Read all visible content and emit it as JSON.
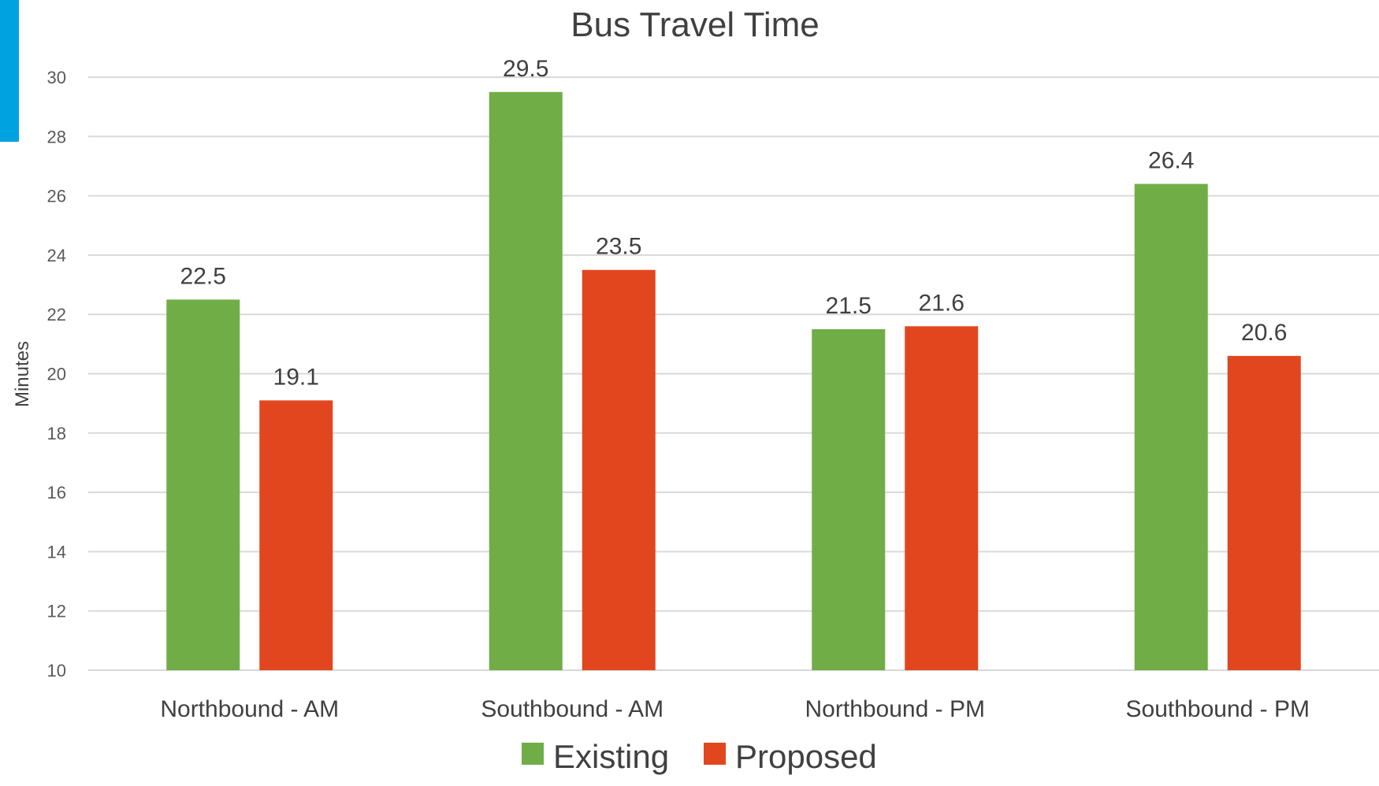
{
  "chart_data": {
    "type": "bar",
    "title": "Bus Travel Time",
    "xlabel": "",
    "ylabel": "Minutes",
    "ylim": [
      10,
      30
    ],
    "yticks": [
      10,
      12,
      14,
      16,
      18,
      20,
      22,
      24,
      26,
      28,
      30
    ],
    "grid": true,
    "legend_position": "bottom",
    "categories": [
      "Northbound - AM",
      "Southbound - AM",
      "Northbound - PM",
      "Southbound - PM"
    ],
    "series": [
      {
        "name": "Existing",
        "color": "#70AD47",
        "values": [
          22.5,
          29.5,
          21.5,
          26.4
        ]
      },
      {
        "name": "Proposed",
        "color": "#E2461E",
        "values": [
          19.1,
          23.5,
          21.6,
          20.6
        ]
      }
    ]
  },
  "accent_color": "#00A3E0"
}
